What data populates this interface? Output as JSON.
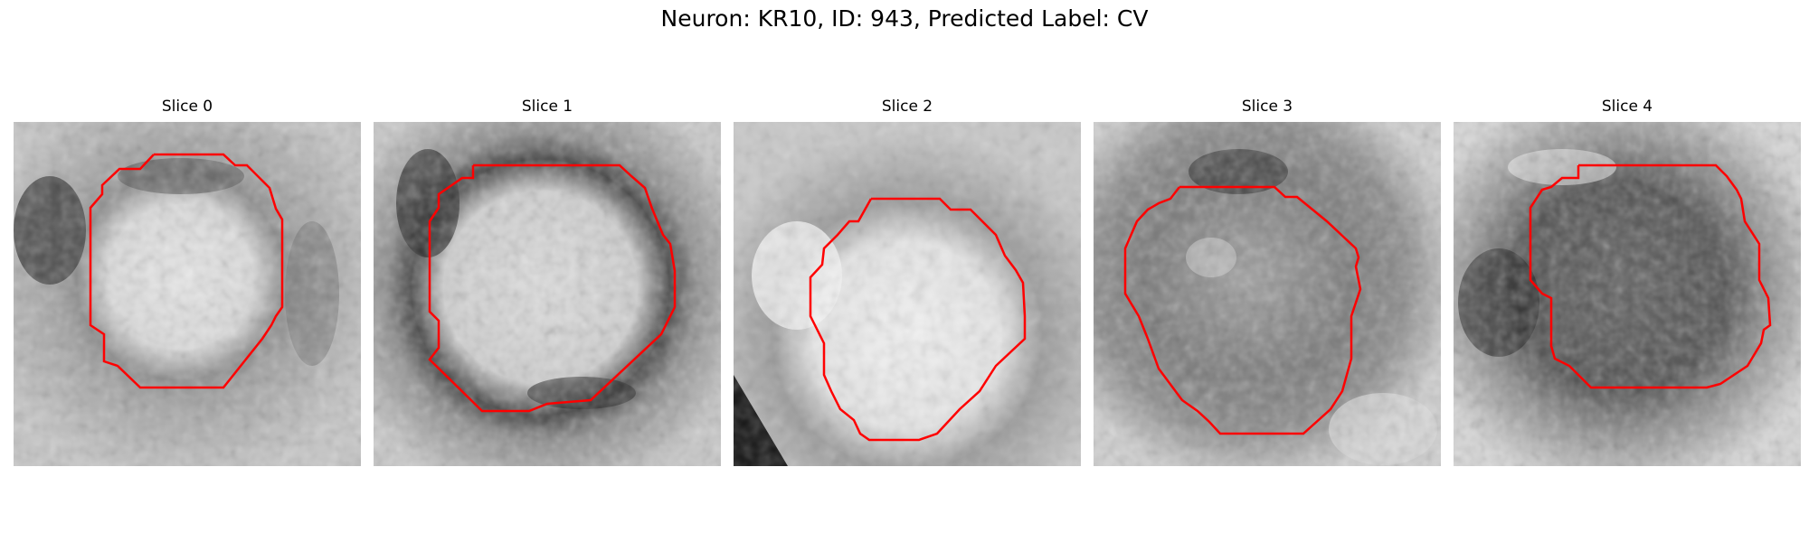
{
  "figure": {
    "title": "Neuron: KR10, ID: 943, Predicted Label: CV"
  },
  "panels": [
    {
      "title": "Slice 0",
      "name": "slice-0"
    },
    {
      "title": "Slice 1",
      "name": "slice-1"
    },
    {
      "title": "Slice 2",
      "name": "slice-2"
    },
    {
      "title": "Slice 3",
      "name": "slice-3"
    },
    {
      "title": "Slice 4",
      "name": "slice-4"
    }
  ],
  "colors": {
    "contour": "#ff0000",
    "background": "#ffffff"
  }
}
